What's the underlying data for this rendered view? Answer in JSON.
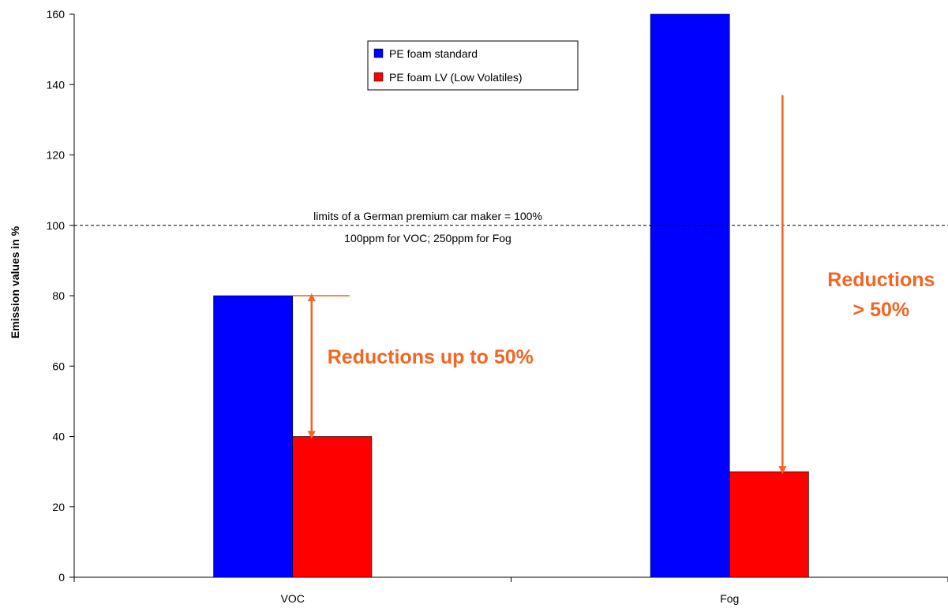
{
  "chart_data": {
    "type": "bar",
    "title": "",
    "xlabel": "",
    "ylabel": "Emission values in %",
    "ylim": [
      0,
      160
    ],
    "yticks": [
      0,
      20,
      40,
      60,
      80,
      100,
      120,
      140,
      160
    ],
    "categories": [
      "VOC",
      "Fog"
    ],
    "series": [
      {
        "name": "PE foam standard",
        "values": [
          80,
          160
        ],
        "color": "#0000ff"
      },
      {
        "name": "PE foam LV (Low Volatiles)",
        "values": [
          40,
          30
        ],
        "color": "#ff0000"
      }
    ],
    "grid": false,
    "legend_position": "top-center",
    "reference_line": {
      "value": 100,
      "style": "dashed",
      "label_line1": "limits of a German premium car maker = 100%",
      "label_line2": "100ppm for VOC; 250ppm for Fog"
    },
    "annotations": [
      {
        "text_lines": [
          "Reductions up to 50%"
        ],
        "category": "VOC",
        "from": 80,
        "to": 40,
        "color": "#f26522"
      },
      {
        "text_lines": [
          "Reductions",
          "> 50%"
        ],
        "category": "Fog",
        "from": 137,
        "to": 30,
        "color": "#f26522"
      }
    ]
  }
}
